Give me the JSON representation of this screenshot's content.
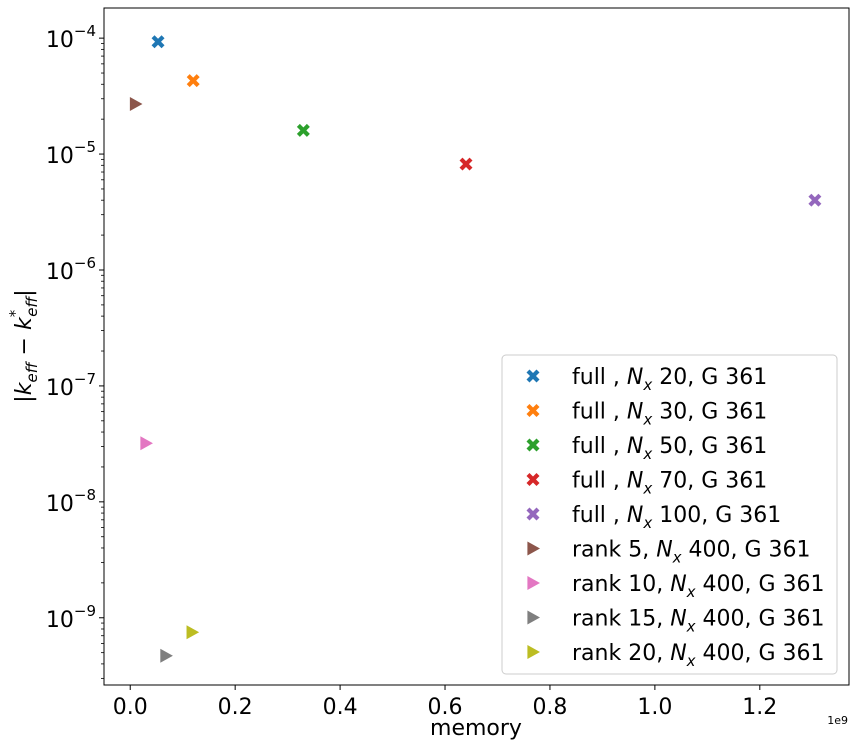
{
  "chart_data": {
    "type": "scatter",
    "xlabel": "memory",
    "ylabel": "|k_eff − k*_eff|",
    "x_scale_note": "1e9",
    "xlim": [
      -0.05,
      1.37
    ],
    "ylim_log10": [
      -9.58,
      -3.74
    ],
    "y_scale": "log",
    "grid": false,
    "legend_position": "lower-right",
    "x_ticks": [
      0.0,
      0.2,
      0.4,
      0.6,
      0.8,
      1.0,
      1.2
    ],
    "x_tick_labels": [
      "0.0",
      "0.2",
      "0.4",
      "0.6",
      "0.8",
      "1.0",
      "1.2"
    ],
    "y_tick_exponents": [
      -4,
      -5,
      -6,
      -7,
      -8,
      -9
    ],
    "series": [
      {
        "name": "full , N_x 20, G 361",
        "prefix": "full , ",
        "suffix": " 20, G 361",
        "marker": "x",
        "color": "#1f77b4",
        "points": [
          [
            0.053,
            9.3e-05
          ]
        ]
      },
      {
        "name": "full , N_x 30, G 361",
        "prefix": "full , ",
        "suffix": " 30, G 361",
        "marker": "x",
        "color": "#ff7f0e",
        "points": [
          [
            0.12,
            4.3e-05
          ]
        ]
      },
      {
        "name": "full , N_x 50, G 361",
        "prefix": "full , ",
        "suffix": " 50, G 361",
        "marker": "x",
        "color": "#2ca02c",
        "points": [
          [
            0.33,
            1.6e-05
          ]
        ]
      },
      {
        "name": "full , N_x 70, G 361",
        "prefix": "full , ",
        "suffix": " 70, G 361",
        "marker": "x",
        "color": "#d62728",
        "points": [
          [
            0.64,
            8.2e-06
          ]
        ]
      },
      {
        "name": "full , N_x 100, G 361",
        "prefix": "full , ",
        "suffix": " 100, G 361",
        "marker": "x",
        "color": "#9467bd",
        "points": [
          [
            1.305,
            4e-06
          ]
        ]
      },
      {
        "name": "rank 5, N_x 400, G 361",
        "prefix": "rank 5, ",
        "suffix": " 400, G 361",
        "marker": "triangle-right",
        "color": "#8c564b",
        "points": [
          [
            0.01,
            2.7e-05
          ]
        ]
      },
      {
        "name": "rank 10, N_x 400, G 361",
        "prefix": "rank 10, ",
        "suffix": " 400, G 361",
        "marker": "triangle-right",
        "color": "#e377c2",
        "points": [
          [
            0.03,
            3.2e-08
          ]
        ]
      },
      {
        "name": "rank 15, N_x 400, G 361",
        "prefix": "rank 15, ",
        "suffix": " 400, G 361",
        "marker": "triangle-right",
        "color": "#7f7f7f",
        "points": [
          [
            0.068,
            4.7e-10
          ]
        ]
      },
      {
        "name": "rank 20, N_x 400, G 361",
        "prefix": "rank 20, ",
        "suffix": " 400, G 361",
        "marker": "triangle-right",
        "color": "#bcbd22",
        "points": [
          [
            0.118,
            7.5e-10
          ]
        ]
      }
    ]
  }
}
